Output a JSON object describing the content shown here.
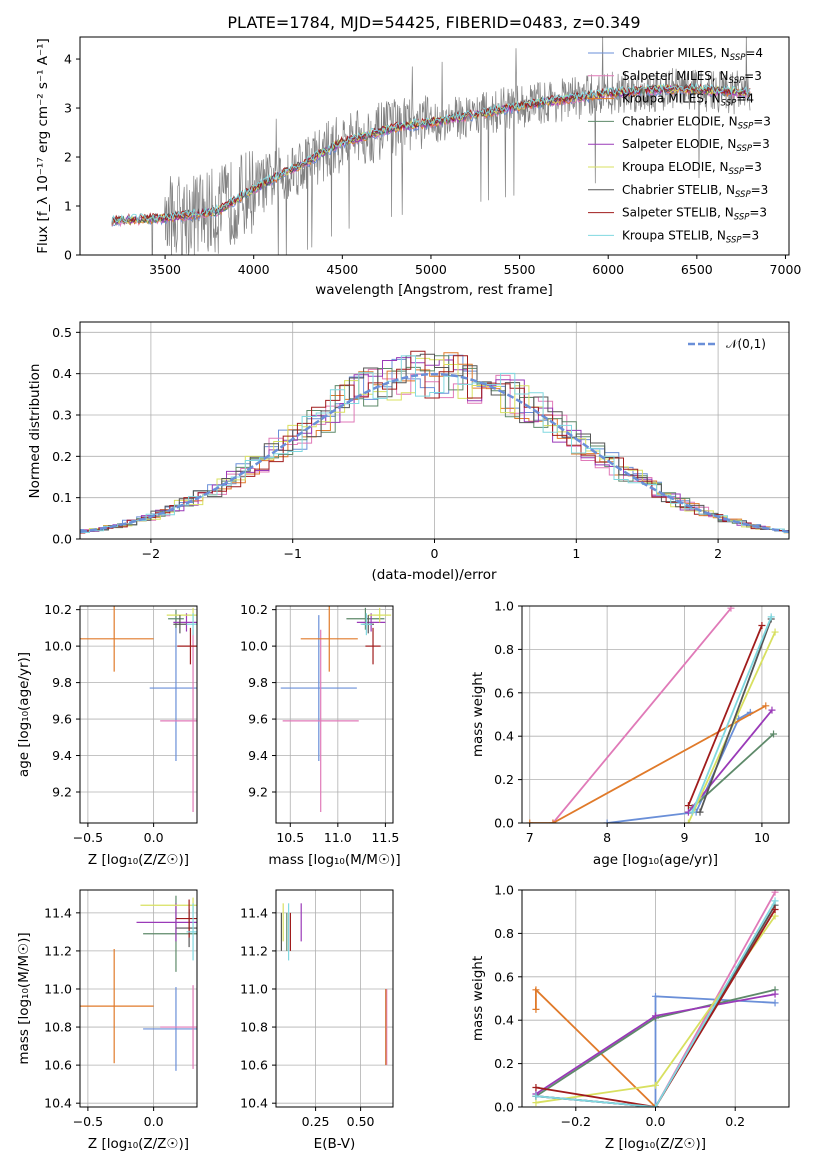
{
  "chart_data": [
    {
      "type": "line",
      "title": "PLATE=1784, MJD=54425, FIBERID=0483, z=0.349",
      "xlabel": "wavelength [Angstrom, rest frame]",
      "ylabel": "Flux [f_λ 10⁻¹⁷ erg cm⁻² s⁻¹ A⁻¹]",
      "xlim": [
        3020,
        7020
      ],
      "ylim": [
        0,
        4.45
      ],
      "xticks": [
        3500,
        4000,
        4500,
        5000,
        5500,
        6000,
        6500,
        7000
      ],
      "yticks": [
        0,
        1,
        2,
        3,
        4
      ],
      "grid": false,
      "legend_position": "top-right",
      "data_range": [
        3200,
        6800
      ],
      "data_anchors": [
        [
          3200,
          0.7
        ],
        [
          3500,
          0.75
        ],
        [
          3800,
          0.9
        ],
        [
          4000,
          1.35
        ],
        [
          4300,
          1.9
        ],
        [
          4500,
          2.3
        ],
        [
          4800,
          2.6
        ],
        [
          5000,
          2.7
        ],
        [
          5300,
          2.9
        ],
        [
          5600,
          3.1
        ],
        [
          6000,
          3.3
        ],
        [
          6400,
          3.4
        ],
        [
          6800,
          3.3
        ]
      ],
      "series": [
        {
          "name": "Chabrier MILES, N_SSP=4",
          "label_main": "Chabrier MILES, N",
          "label_sub": "SSP",
          "label_tail": "=4",
          "color": "#6a8fd8"
        },
        {
          "name": "Salpeter MILES, N_SSP=3",
          "label_main": "Salpeter MILES, N",
          "label_sub": "SSP",
          "label_tail": "=3",
          "color": "#e07ab8"
        },
        {
          "name": "Kroupa MILES, N_SSP=4",
          "label_main": "Kroupa MILES, N",
          "label_sub": "SSP",
          "label_tail": "=4",
          "color": "#e07a2a"
        },
        {
          "name": "Chabrier ELODIE, N_SSP=3",
          "label_main": "Chabrier ELODIE, N",
          "label_sub": "SSP",
          "label_tail": "=3",
          "color": "#5e8a6a"
        },
        {
          "name": "Salpeter ELODIE, N_SSP=3",
          "label_main": "Salpeter ELODIE, N",
          "label_sub": "SSP",
          "label_tail": "=3",
          "color": "#9a3ab8"
        },
        {
          "name": "Kroupa ELODIE, N_SSP=3",
          "label_main": "Kroupa ELODIE, N",
          "label_sub": "SSP",
          "label_tail": "=3",
          "color": "#d8e060"
        },
        {
          "name": "Chabrier STELIB, N_SSP=3",
          "label_main": "Chabrier STELIB, N",
          "label_sub": "SSP",
          "label_tail": "=3",
          "color": "#555555"
        },
        {
          "name": "Salpeter STELIB, N_SSP=3",
          "label_main": "Salpeter STELIB, N",
          "label_sub": "SSP",
          "label_tail": "=3",
          "color": "#a01c1c"
        },
        {
          "name": "Kroupa STELIB, N_SSP=3",
          "label_main": "Kroupa STELIB, N",
          "label_sub": "SSP",
          "label_tail": "=3",
          "color": "#80d8e0"
        }
      ],
      "data_color": "#808080"
    },
    {
      "type": "step",
      "xlabel": "(data-model)/error",
      "ylabel": "Normed distribution",
      "xlim": [
        -2.5,
        2.5
      ],
      "ylim": [
        0,
        0.525
      ],
      "xticks": [
        -2,
        -1,
        0,
        1,
        2
      ],
      "yticks": [
        0.0,
        0.1,
        0.2,
        0.3,
        0.4,
        0.5
      ],
      "grid": true,
      "legend_position": "top-right",
      "reference_curve": {
        "name": "𝒩(0,1)",
        "color": "#6a8fd8"
      }
    },
    {
      "type": "errorbar",
      "xlabel": "Z [log₁₀(Z/Z☉)]",
      "ylabel": "age  [log₁₀(age/yr)]",
      "xlim": [
        -0.56,
        0.33
      ],
      "ylim": [
        9.03,
        10.22
      ],
      "xticks": [
        -0.5,
        0.0
      ],
      "yticks": [
        9.2,
        9.4,
        9.6,
        9.8,
        10.0,
        10.2
      ],
      "grid": true,
      "points": [
        {
          "series": "Chabrier MILES",
          "x": 0.17,
          "xerr": 0.2,
          "y": 9.77,
          "yerr": 0.4
        },
        {
          "series": "Salpeter MILES",
          "x": 0.3,
          "xerr": 0.25,
          "y": 9.59,
          "yerr": 0.5
        },
        {
          "series": "Kroupa MILES",
          "x": -0.3,
          "xerr": 0.3,
          "y": 10.04,
          "yerr": 0.18
        },
        {
          "series": "Chabrier ELODIE",
          "x": 0.17,
          "xerr": 0.06,
          "y": 10.15,
          "yerr": 0.05
        },
        {
          "series": "Salpeter ELODIE",
          "x": 0.25,
          "xerr": 0.1,
          "y": 10.13,
          "yerr": 0.05
        },
        {
          "series": "Kroupa ELODIE",
          "x": 0.3,
          "xerr": 0.2,
          "y": 10.17,
          "yerr": 0.04
        },
        {
          "series": "Chabrier STELIB",
          "x": 0.2,
          "xerr": 0.05,
          "y": 10.12,
          "yerr": 0.05
        },
        {
          "series": "Salpeter STELIB",
          "x": 0.28,
          "xerr": 0.1,
          "y": 10.0,
          "yerr": 0.1
        },
        {
          "series": "Kroupa STELIB",
          "x": 0.3,
          "xerr": 0.05,
          "y": 10.12,
          "yerr": 0.06
        }
      ]
    },
    {
      "type": "errorbar",
      "xlabel": "mass [log₁₀(M/M☉)]",
      "xlim": [
        10.35,
        11.58
      ],
      "ylim": [
        9.03,
        10.22
      ],
      "xticks": [
        10.5,
        11.0,
        11.5
      ],
      "yticks": [
        9.2,
        9.4,
        9.6,
        9.8,
        10.0,
        10.2
      ],
      "grid": true,
      "points": [
        {
          "series": "Chabrier MILES",
          "x": 10.8,
          "xerr": 0.4,
          "y": 9.77,
          "yerr": 0.4
        },
        {
          "series": "Salpeter MILES",
          "x": 10.82,
          "xerr": 0.4,
          "y": 9.59,
          "yerr": 0.5
        },
        {
          "series": "Kroupa MILES",
          "x": 10.91,
          "xerr": 0.3,
          "y": 10.04,
          "yerr": 0.18
        },
        {
          "series": "Chabrier ELODIE",
          "x": 11.29,
          "xerr": 0.2,
          "y": 10.15,
          "yerr": 0.06
        },
        {
          "series": "Salpeter ELODIE",
          "x": 11.35,
          "xerr": 0.15,
          "y": 10.13,
          "yerr": 0.05
        },
        {
          "series": "Kroupa ELODIE",
          "x": 11.44,
          "xerr": 0.12,
          "y": 10.17,
          "yerr": 0.04
        },
        {
          "series": "Chabrier STELIB",
          "x": 11.32,
          "xerr": 0.06,
          "y": 10.12,
          "yerr": 0.05
        },
        {
          "series": "Salpeter STELIB",
          "x": 11.37,
          "xerr": 0.08,
          "y": 10.0,
          "yerr": 0.1
        },
        {
          "series": "Kroupa STELIB",
          "x": 11.3,
          "xerr": 0.06,
          "y": 10.12,
          "yerr": 0.06
        }
      ]
    },
    {
      "type": "line",
      "xlabel": "age  [log₁₀(age/yr)]",
      "ylabel": "mass weight",
      "xlim": [
        6.9,
        10.35
      ],
      "ylim": [
        0,
        1.0
      ],
      "xticks": [
        7,
        8,
        9,
        10
      ],
      "yticks": [
        0.0,
        0.2,
        0.4,
        0.6,
        0.8,
        1.0
      ],
      "grid": true,
      "series": [
        {
          "series": "Chabrier MILES",
          "x": [
            8.0,
            9.15,
            9.7,
            9.85
          ],
          "y": [
            0.0,
            0.05,
            0.48,
            0.51
          ]
        },
        {
          "series": "Salpeter MILES",
          "x": [
            7.3,
            9.6
          ],
          "y": [
            0.0,
            0.99
          ]
        },
        {
          "series": "Kroupa MILES",
          "x": [
            7.0,
            7.3,
            10.05
          ],
          "y": [
            0.0,
            0.0,
            0.54
          ]
        },
        {
          "series": "Chabrier ELODIE",
          "x": [
            9.1,
            10.15
          ],
          "y": [
            0.07,
            0.41
          ]
        },
        {
          "series": "Salpeter ELODIE",
          "x": [
            9.05,
            10.13
          ],
          "y": [
            0.05,
            0.52
          ]
        },
        {
          "series": "Kroupa ELODIE",
          "x": [
            9.05,
            10.17
          ],
          "y": [
            0.0,
            0.88
          ]
        },
        {
          "series": "Chabrier STELIB",
          "x": [
            9.2,
            10.12
          ],
          "y": [
            0.05,
            0.94
          ]
        },
        {
          "series": "Salpeter STELIB",
          "x": [
            9.05,
            10.0
          ],
          "y": [
            0.08,
            0.91
          ]
        },
        {
          "series": "Kroupa STELIB",
          "x": [
            9.1,
            10.12
          ],
          "y": [
            0.05,
            0.95
          ]
        }
      ]
    },
    {
      "type": "errorbar",
      "xlabel": "Z [log₁₀(Z/Z☉)]",
      "ylabel": "mass [log₁₀(M/M☉)]",
      "xlim": [
        -0.56,
        0.33
      ],
      "ylim": [
        10.38,
        11.52
      ],
      "xticks": [
        -0.5,
        0.0
      ],
      "yticks": [
        10.4,
        10.6,
        10.8,
        11.0,
        11.2,
        11.4
      ],
      "grid": true,
      "points": [
        {
          "series": "Chabrier MILES",
          "x": 0.17,
          "xerr": 0.25,
          "y": 10.79,
          "yerr": 0.22
        },
        {
          "series": "Salpeter MILES",
          "x": 0.3,
          "xerr": 0.25,
          "y": 10.8,
          "yerr": 0.22
        },
        {
          "series": "Kroupa MILES",
          "x": -0.3,
          "xerr": 0.3,
          "y": 10.91,
          "yerr": 0.3
        },
        {
          "series": "Chabrier ELODIE",
          "x": 0.17,
          "xerr": 0.25,
          "y": 11.29,
          "yerr": 0.2
        },
        {
          "series": "Salpeter ELODIE",
          "x": 0.17,
          "xerr": 0.3,
          "y": 11.35,
          "yerr": 0.1
        },
        {
          "series": "Kroupa ELODIE",
          "x": 0.3,
          "xerr": 0.4,
          "y": 11.44,
          "yerr": 0.04
        },
        {
          "series": "Chabrier STELIB",
          "x": 0.27,
          "xerr": 0.1,
          "y": 11.32,
          "yerr": 0.1
        },
        {
          "series": "Salpeter STELIB",
          "x": 0.27,
          "xerr": 0.1,
          "y": 11.37,
          "yerr": 0.1
        },
        {
          "series": "Kroupa STELIB",
          "x": 0.3,
          "xerr": 0.05,
          "y": 11.3,
          "yerr": 0.15
        }
      ]
    },
    {
      "type": "errorbar",
      "xlabel": "E(B-V)",
      "xlim": [
        0.03,
        0.68
      ],
      "ylim": [
        10.38,
        11.52
      ],
      "xticks": [
        0.25,
        0.5
      ],
      "yticks": [
        10.4,
        10.6,
        10.8,
        11.0,
        11.2,
        11.4
      ],
      "grid": true,
      "points": [
        {
          "series": "Chabrier MILES",
          "x": 0.64,
          "y": 10.8,
          "yerr": 0.2
        },
        {
          "series": "Salpeter MILES",
          "x": 0.645,
          "y": 10.8,
          "yerr": 0.2
        },
        {
          "series": "Kroupa MILES",
          "x": 0.64,
          "y": 10.8,
          "yerr": 0.2
        },
        {
          "series": "Chabrier ELODIE",
          "x": 0.09,
          "y": 11.3,
          "yerr": 0.1
        },
        {
          "series": "Salpeter ELODIE",
          "x": 0.17,
          "y": 11.35,
          "yerr": 0.1
        },
        {
          "series": "Kroupa ELODIE",
          "x": 0.07,
          "y": 11.35,
          "yerr": 0.1
        },
        {
          "series": "Chabrier STELIB",
          "x": 0.06,
          "y": 11.3,
          "yerr": 0.1
        },
        {
          "series": "Salpeter STELIB",
          "x": 0.11,
          "y": 11.3,
          "yerr": 0.1
        },
        {
          "series": "Kroupa STELIB",
          "x": 0.1,
          "y": 11.3,
          "yerr": 0.15
        }
      ]
    },
    {
      "type": "line",
      "xlabel": "Z [log₁₀(Z/Z☉)]",
      "ylabel": "mass weight",
      "xlim": [
        -0.335,
        0.335
      ],
      "ylim": [
        0,
        1.0
      ],
      "xticks": [
        -0.2,
        0.0,
        0.2
      ],
      "yticks": [
        0.0,
        0.2,
        0.4,
        0.6,
        0.8,
        1.0
      ],
      "grid": true,
      "series": [
        {
          "series": "Chabrier MILES",
          "x": [
            -0.3,
            0.0,
            0.0,
            0.3
          ],
          "y": [
            0.05,
            0.0,
            0.51,
            0.48
          ]
        },
        {
          "series": "Salpeter MILES",
          "x": [
            -0.3,
            0.0,
            0.3
          ],
          "y": [
            0.05,
            0.0,
            0.99
          ]
        },
        {
          "series": "Kroupa MILES",
          "x": [
            -0.3,
            -0.3,
            0.0
          ],
          "y": [
            0.45,
            0.54,
            0.0
          ]
        },
        {
          "series": "Chabrier ELODIE",
          "x": [
            -0.3,
            0.0,
            0.3
          ],
          "y": [
            0.05,
            0.41,
            0.54
          ]
        },
        {
          "series": "Salpeter ELODIE",
          "x": [
            -0.3,
            0.0,
            0.3
          ],
          "y": [
            0.06,
            0.42,
            0.52
          ]
        },
        {
          "series": "Kroupa ELODIE",
          "x": [
            -0.3,
            0.0,
            0.3
          ],
          "y": [
            0.02,
            0.1,
            0.88
          ]
        },
        {
          "series": "Chabrier STELIB",
          "x": [
            -0.3,
            0.0,
            0.3
          ],
          "y": [
            0.05,
            0.0,
            0.93
          ]
        },
        {
          "series": "Salpeter STELIB",
          "x": [
            -0.3,
            0.0,
            0.3
          ],
          "y": [
            0.09,
            0.0,
            0.91
          ]
        },
        {
          "series": "Kroupa STELIB",
          "x": [
            -0.3,
            0.0,
            0.3
          ],
          "y": [
            0.05,
            0.0,
            0.95
          ]
        }
      ]
    }
  ]
}
